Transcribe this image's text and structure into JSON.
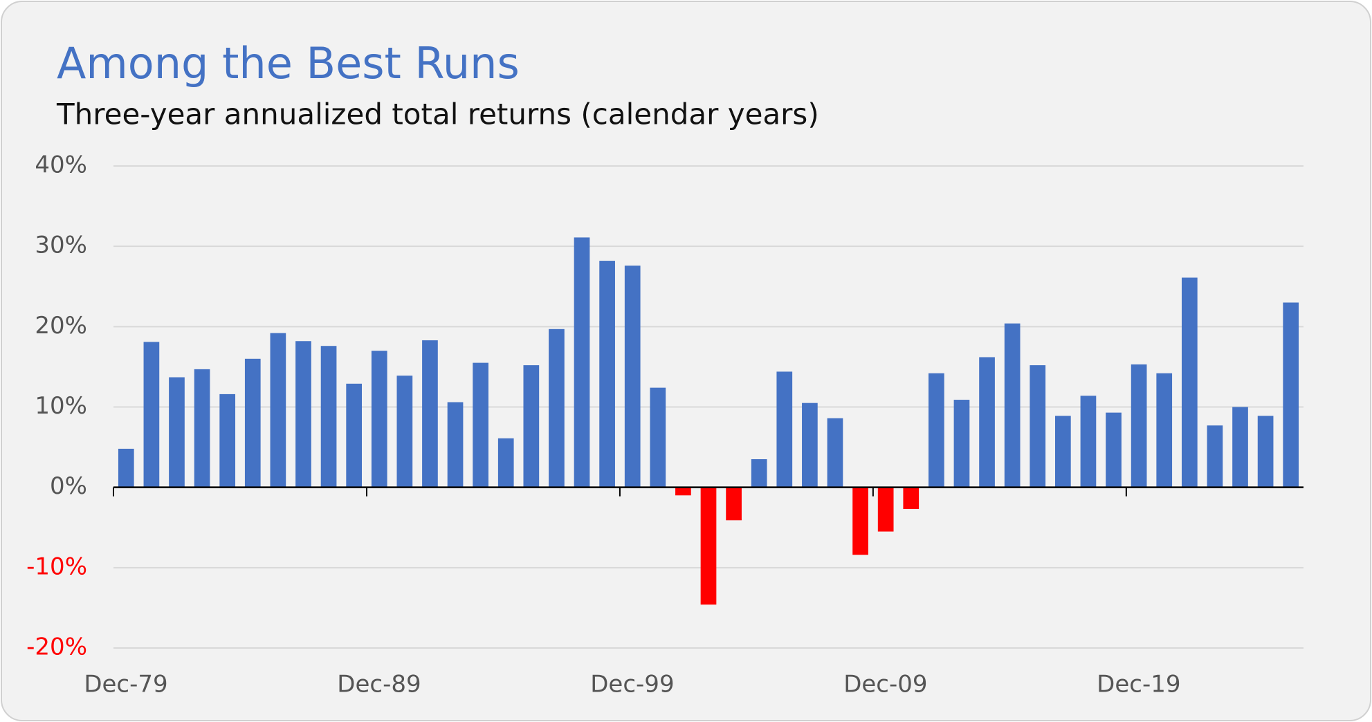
{
  "chart_data": {
    "type": "bar",
    "title": "Among the Best Runs",
    "subtitle": "Three-year annualized total returns (calendar years)",
    "categories": [
      "Dec-79",
      null,
      null,
      null,
      null,
      null,
      null,
      null,
      null,
      null,
      "Dec-89",
      null,
      null,
      null,
      null,
      null,
      null,
      null,
      null,
      null,
      "Dec-99",
      null,
      null,
      null,
      null,
      null,
      null,
      null,
      null,
      null,
      "Dec-09",
      null,
      null,
      null,
      null,
      null,
      null,
      null,
      null,
      null,
      "Dec-19",
      null,
      null,
      null,
      null,
      null,
      null
    ],
    "values": [
      4.8,
      18.1,
      13.7,
      14.7,
      11.6,
      16,
      19.2,
      18.2,
      17.6,
      12.9,
      17,
      13.9,
      18.3,
      10.6,
      15.5,
      6.1,
      15.2,
      19.7,
      31.1,
      28.2,
      27.6,
      12.4,
      -1,
      -14.6,
      -4.1,
      3.5,
      14.4,
      10.5,
      8.6,
      -8.4,
      -5.5,
      -2.7,
      14.2,
      10.9,
      16.2,
      20.4,
      15.2,
      8.9,
      11.4,
      9.3,
      15.3,
      14.2,
      26.1,
      7.7,
      10,
      8.9,
      23
    ],
    "color": "#4472c4",
    "negative_color": "#ff0000",
    "ylim": [
      -20,
      40
    ],
    "yticks": [
      {
        "value": -20,
        "label": "-20%"
      },
      {
        "value": -10,
        "label": "-10%"
      },
      {
        "value": 0,
        "label": "0%"
      },
      {
        "value": 10,
        "label": "10%"
      },
      {
        "value": 20,
        "label": "20%"
      },
      {
        "value": 30,
        "label": "30%"
      },
      {
        "value": 40,
        "label": "40%"
      }
    ],
    "grid": true
  }
}
